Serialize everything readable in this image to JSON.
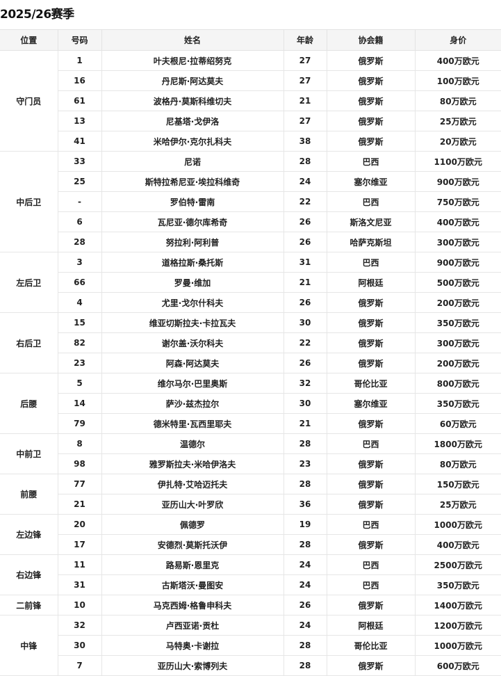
{
  "title": "2025/26赛季",
  "columns": [
    "位置",
    "号码",
    "姓名",
    "年龄",
    "协会籍",
    "身价"
  ],
  "groups": [
    {
      "position": "守门员",
      "players": [
        {
          "number": "1",
          "name": "叶夫根尼·拉蒂绍努克",
          "age": "27",
          "nation": "俄罗斯",
          "value": "400万欧元"
        },
        {
          "number": "16",
          "name": "丹尼斯·阿达莫夫",
          "age": "27",
          "nation": "俄罗斯",
          "value": "100万欧元"
        },
        {
          "number": "61",
          "name": "波格丹·莫斯科维切夫",
          "age": "21",
          "nation": "俄罗斯",
          "value": "80万欧元"
        },
        {
          "number": "13",
          "name": "尼基塔·戈伊洛",
          "age": "27",
          "nation": "俄罗斯",
          "value": "25万欧元"
        },
        {
          "number": "41",
          "name": "米哈伊尔·克尔扎科夫",
          "age": "38",
          "nation": "俄罗斯",
          "value": "20万欧元"
        }
      ]
    },
    {
      "position": "中后卫",
      "players": [
        {
          "number": "33",
          "name": "尼诺",
          "age": "28",
          "nation": "巴西",
          "value": "1100万欧元"
        },
        {
          "number": "25",
          "name": "斯特拉希尼亚·埃拉科维奇",
          "age": "24",
          "nation": "塞尔维亚",
          "value": "900万欧元"
        },
        {
          "number": "-",
          "name": "罗伯特·雷南",
          "age": "22",
          "nation": "巴西",
          "value": "750万欧元"
        },
        {
          "number": "6",
          "name": "瓦尼亚·德尔库希奇",
          "age": "26",
          "nation": "斯洛文尼亚",
          "value": "400万欧元"
        },
        {
          "number": "28",
          "name": "努拉利·阿利普",
          "age": "26",
          "nation": "哈萨克斯坦",
          "value": "300万欧元"
        }
      ]
    },
    {
      "position": "左后卫",
      "players": [
        {
          "number": "3",
          "name": "道格拉斯·桑托斯",
          "age": "31",
          "nation": "巴西",
          "value": "900万欧元"
        },
        {
          "number": "66",
          "name": "罗曼·维加",
          "age": "21",
          "nation": "阿根廷",
          "value": "500万欧元"
        },
        {
          "number": "4",
          "name": "尤里·戈尔什科夫",
          "age": "26",
          "nation": "俄罗斯",
          "value": "200万欧元"
        }
      ]
    },
    {
      "position": "右后卫",
      "players": [
        {
          "number": "15",
          "name": "维亚切斯拉夫·卡拉瓦夫",
          "age": "30",
          "nation": "俄罗斯",
          "value": "350万欧元"
        },
        {
          "number": "82",
          "name": "谢尔盖·沃尔科夫",
          "age": "22",
          "nation": "俄罗斯",
          "value": "300万欧元"
        },
        {
          "number": "23",
          "name": "阿森·阿达莫夫",
          "age": "26",
          "nation": "俄罗斯",
          "value": "200万欧元"
        }
      ]
    },
    {
      "position": "后腰",
      "players": [
        {
          "number": "5",
          "name": "维尔马尔·巴里奥斯",
          "age": "32",
          "nation": "哥伦比亚",
          "value": "800万欧元"
        },
        {
          "number": "14",
          "name": "萨沙·兹杰拉尔",
          "age": "30",
          "nation": "塞尔维亚",
          "value": "350万欧元"
        },
        {
          "number": "79",
          "name": "德米特里·瓦西里耶夫",
          "age": "21",
          "nation": "俄罗斯",
          "value": "60万欧元"
        }
      ]
    },
    {
      "position": "中前卫",
      "players": [
        {
          "number": "8",
          "name": "温德尔",
          "age": "28",
          "nation": "巴西",
          "value": "1800万欧元"
        },
        {
          "number": "98",
          "name": "雅罗斯拉夫·米哈伊洛夫",
          "age": "23",
          "nation": "俄罗斯",
          "value": "80万欧元"
        }
      ]
    },
    {
      "position": "前腰",
      "players": [
        {
          "number": "77",
          "name": "伊扎特·艾哈迈托夫",
          "age": "28",
          "nation": "俄罗斯",
          "value": "150万欧元"
        },
        {
          "number": "21",
          "name": "亚历山大·叶罗欣",
          "age": "36",
          "nation": "俄罗斯",
          "value": "25万欧元"
        }
      ]
    },
    {
      "position": "左边锋",
      "players": [
        {
          "number": "20",
          "name": "佩德罗",
          "age": "19",
          "nation": "巴西",
          "value": "1000万欧元"
        },
        {
          "number": "17",
          "name": "安德烈·莫斯托沃伊",
          "age": "28",
          "nation": "俄罗斯",
          "value": "400万欧元"
        }
      ]
    },
    {
      "position": "右边锋",
      "players": [
        {
          "number": "11",
          "name": "路易斯·恩里克",
          "age": "24",
          "nation": "巴西",
          "value": "2500万欧元"
        },
        {
          "number": "31",
          "name": "古斯塔沃·曼图安",
          "age": "24",
          "nation": "巴西",
          "value": "350万欧元"
        }
      ]
    },
    {
      "position": "二前锋",
      "players": [
        {
          "number": "10",
          "name": "马克西姆·格鲁申科夫",
          "age": "26",
          "nation": "俄罗斯",
          "value": "1400万欧元"
        }
      ]
    },
    {
      "position": "中锋",
      "players": [
        {
          "number": "32",
          "name": "卢西亚诺·贡杜",
          "age": "24",
          "nation": "阿根廷",
          "value": "1200万欧元"
        },
        {
          "number": "30",
          "name": "马特奥·卡谢拉",
          "age": "28",
          "nation": "哥伦比亚",
          "value": "1000万欧元"
        },
        {
          "number": "7",
          "name": "亚历山大·索博列夫",
          "age": "28",
          "nation": "俄罗斯",
          "value": "600万欧元"
        }
      ]
    }
  ]
}
